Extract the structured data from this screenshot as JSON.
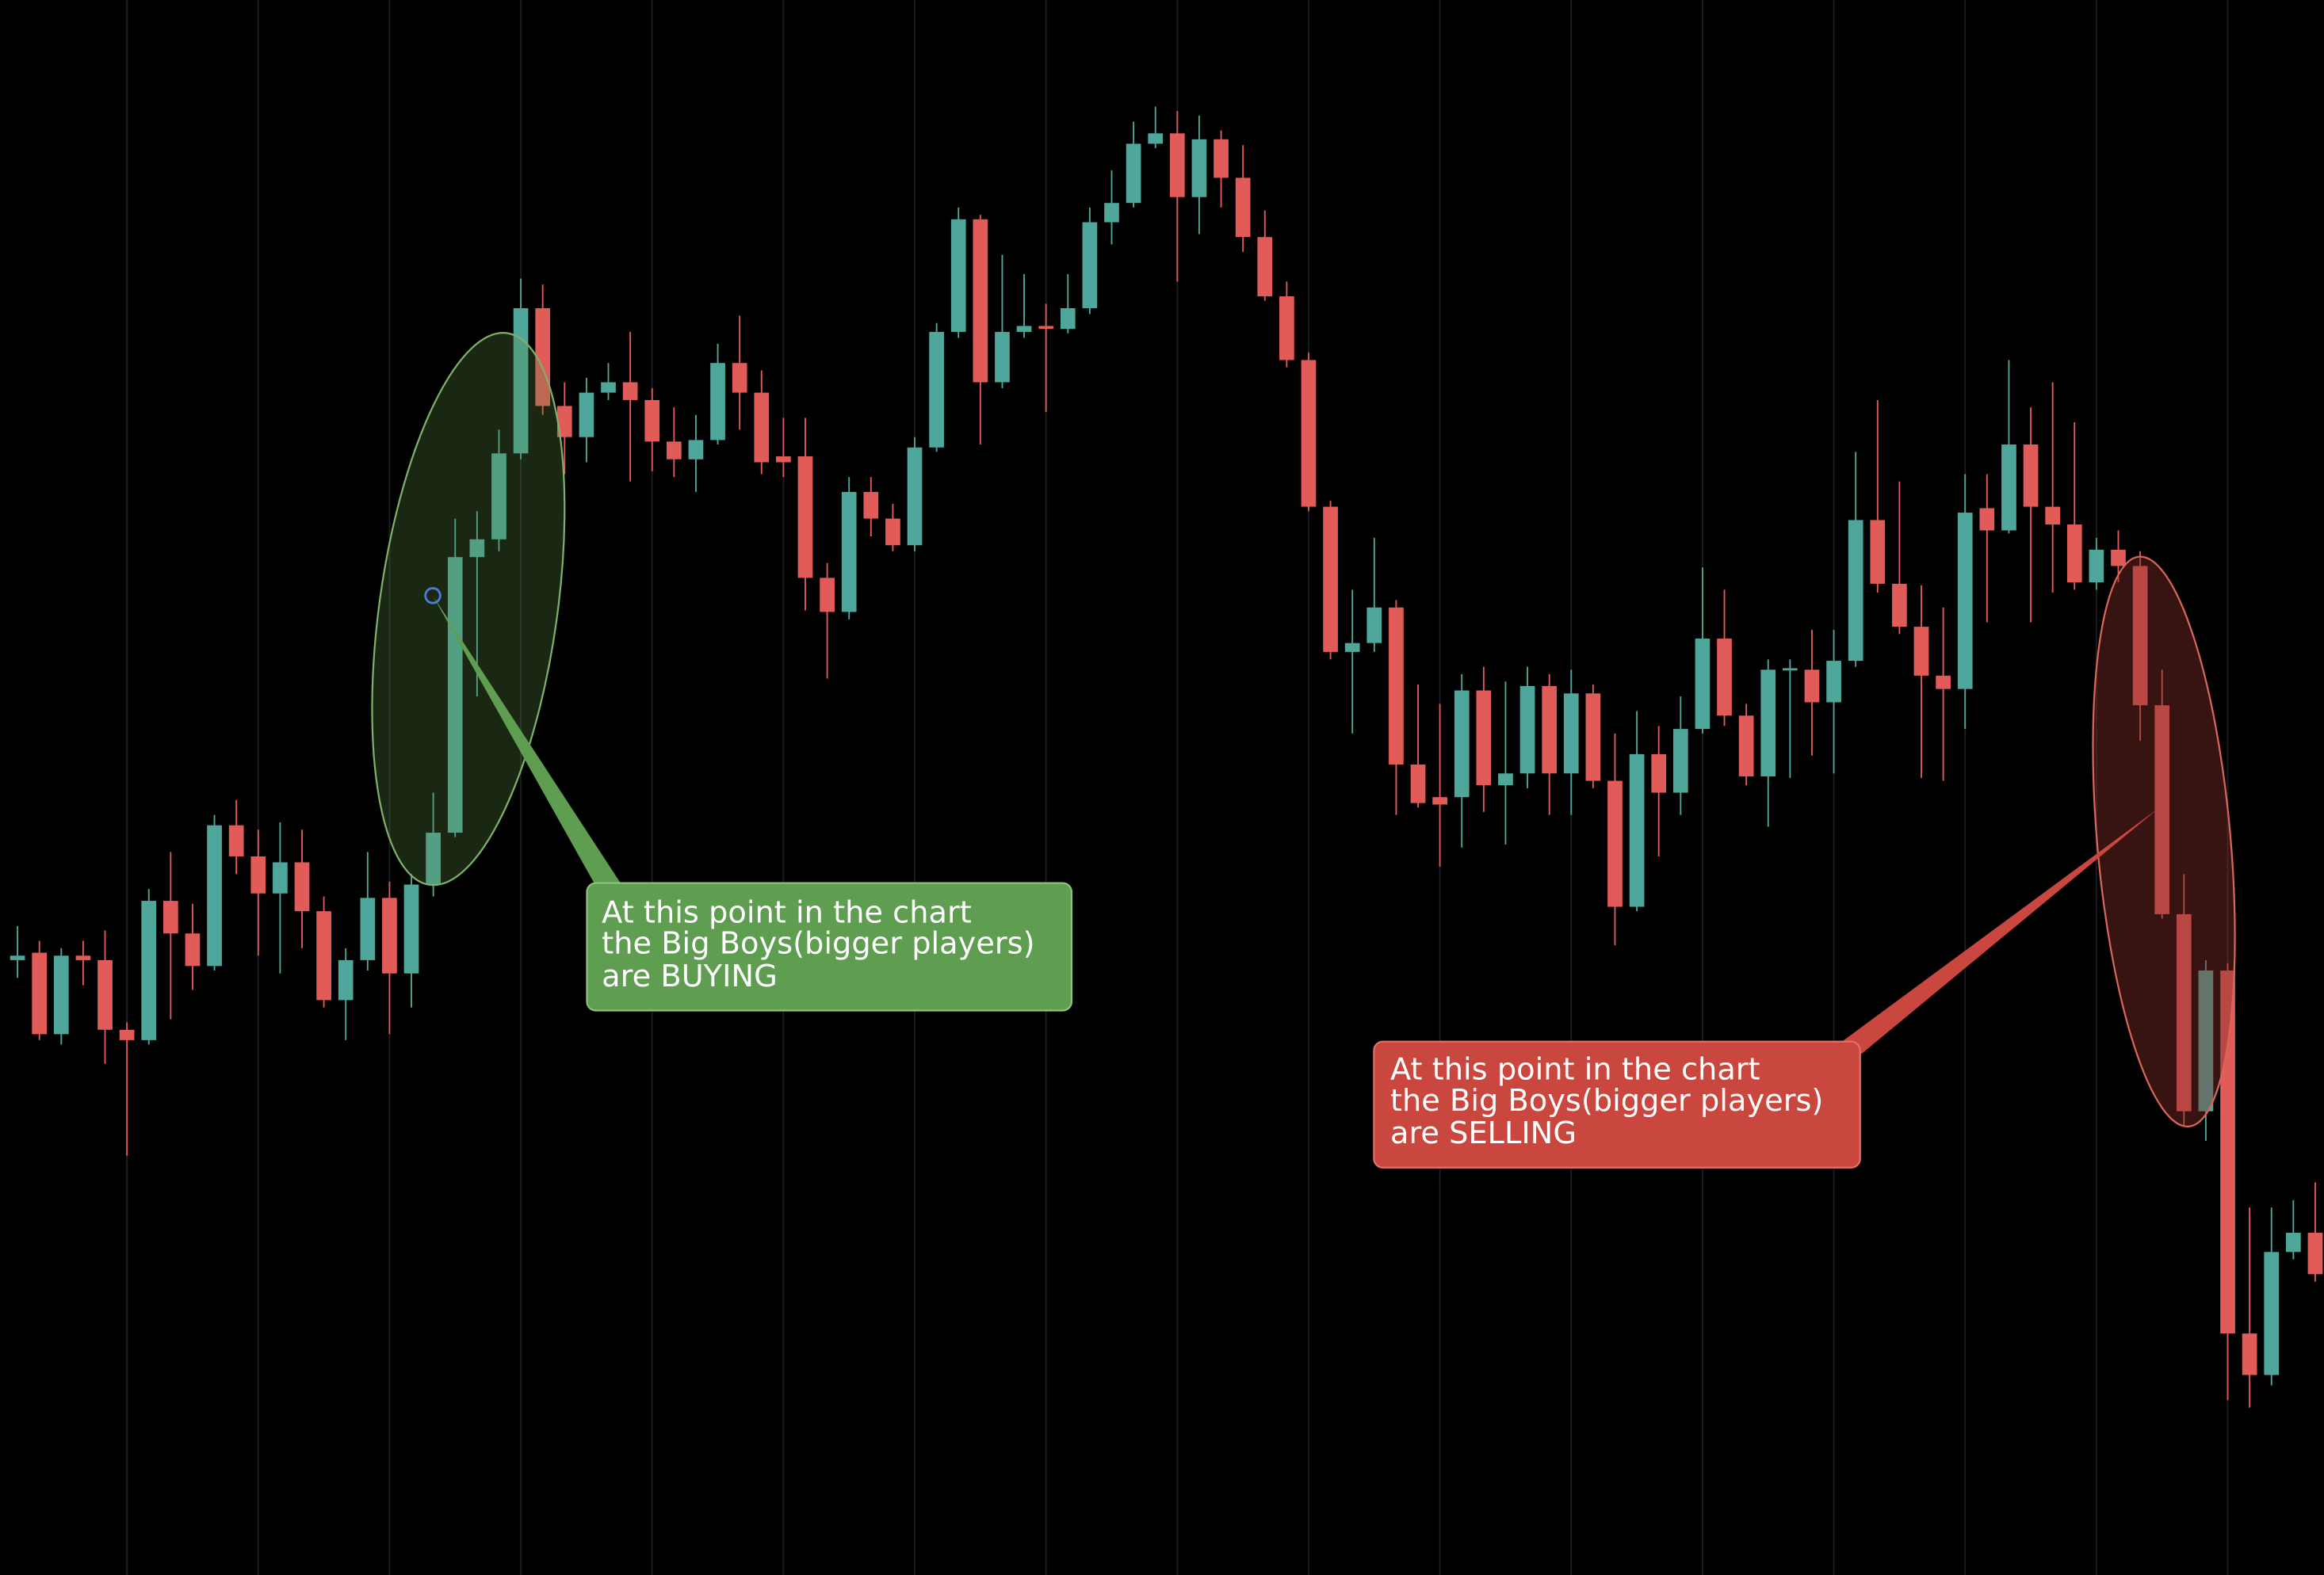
{
  "chart_data": {
    "type": "candlestick",
    "up_color": "#4fa79b",
    "down_color": "#e15b58",
    "grid": true,
    "ylim": [
      0,
      1063
    ],
    "xlim": [
      -0.8,
      105.4
    ],
    "xticks": [
      5,
      11,
      17,
      23,
      29,
      35,
      41,
      47,
      53,
      59,
      65,
      71,
      77,
      83,
      89,
      95,
      101
    ],
    "x": [
      0,
      1,
      2,
      3,
      4,
      5,
      6,
      7,
      8,
      9,
      10,
      11,
      12,
      13,
      14,
      15,
      16,
      17,
      18,
      19,
      20,
      21,
      22,
      23,
      24,
      25,
      26,
      27,
      28,
      29,
      30,
      31,
      32,
      33,
      34,
      35,
      36,
      37,
      38,
      39,
      40,
      41,
      42,
      43,
      44,
      45,
      46,
      47,
      48,
      49,
      50,
      51,
      52,
      53,
      54,
      55,
      56,
      57,
      58,
      59,
      60,
      61,
      62,
      63,
      64,
      65,
      66,
      67,
      68,
      69,
      70,
      71,
      72,
      73,
      74,
      75,
      76,
      77,
      78,
      79,
      80,
      81,
      82,
      83,
      84,
      85,
      86,
      87,
      88,
      89,
      90,
      91,
      92,
      93,
      94,
      95,
      96,
      97,
      98,
      99,
      100,
      101,
      102,
      103,
      104,
      105
    ],
    "open": [
      415,
      420,
      365,
      418,
      415,
      368,
      361,
      455,
      433,
      411,
      506,
      485,
      460,
      481,
      448,
      388,
      415,
      457,
      406,
      466,
      501,
      687,
      699,
      757,
      855,
      789,
      768,
      798,
      805,
      793,
      765,
      753,
      766,
      818,
      798,
      755,
      755,
      673,
      650,
      731,
      713,
      695,
      761,
      839,
      915,
      805,
      839,
      843,
      841,
      855,
      913,
      926,
      966,
      973,
      930,
      969,
      943,
      903,
      863,
      820,
      721,
      623,
      629,
      653,
      547,
      525,
      525,
      597,
      533,
      541,
      600,
      541,
      595,
      536,
      451,
      554,
      528,
      571,
      632,
      580,
      539,
      611,
      611,
      589,
      617,
      712,
      669,
      640,
      607,
      598,
      720,
      705,
      763,
      721,
      709,
      670,
      692,
      681,
      587,
      446,
      313,
      408,
      163,
      135,
      218,
      231
    ],
    "high": [
      438,
      428,
      423,
      428,
      435,
      373,
      463,
      488,
      453,
      513,
      523,
      503,
      508,
      503,
      458,
      423,
      488,
      468,
      473,
      528,
      713,
      718,
      773,
      875,
      871,
      805,
      808,
      818,
      839,
      801,
      788,
      783,
      831,
      850,
      813,
      781,
      781,
      683,
      741,
      741,
      723,
      768,
      845,
      923,
      918,
      891,
      878,
      858,
      878,
      923,
      948,
      981,
      991,
      988,
      985,
      975,
      965,
      921,
      873,
      825,
      725,
      665,
      700,
      658,
      601,
      588,
      608,
      613,
      603,
      613,
      608,
      611,
      601,
      568,
      583,
      573,
      593,
      680,
      665,
      588,
      618,
      618,
      638,
      638,
      758,
      793,
      738,
      668,
      653,
      743,
      743,
      820,
      788,
      805,
      778,
      700,
      705,
      691,
      611,
      473,
      415,
      413,
      248,
      248,
      253,
      265
    ],
    "low": [
      403,
      361,
      358,
      398,
      345,
      283,
      358,
      375,
      395,
      408,
      473,
      418,
      406,
      423,
      383,
      361,
      408,
      365,
      383,
      458,
      498,
      593,
      691,
      753,
      783,
      743,
      751,
      793,
      738,
      745,
      741,
      731,
      763,
      773,
      743,
      741,
      651,
      605,
      645,
      701,
      691,
      691,
      758,
      835,
      763,
      801,
      835,
      785,
      838,
      851,
      898,
      923,
      963,
      873,
      905,
      923,
      893,
      860,
      815,
      718,
      618,
      568,
      623,
      513,
      518,
      478,
      491,
      515,
      493,
      531,
      513,
      513,
      531,
      425,
      448,
      485,
      513,
      568,
      573,
      533,
      505,
      538,
      553,
      541,
      613,
      663,
      635,
      538,
      536,
      571,
      643,
      703,
      643,
      663,
      665,
      665,
      670,
      563,
      443,
      303,
      293,
      118,
      113,
      128,
      213,
      198
    ],
    "close": [
      418,
      365,
      418,
      415,
      368,
      361,
      455,
      433,
      411,
      506,
      485,
      460,
      481,
      448,
      388,
      415,
      457,
      406,
      466,
      501,
      687,
      699,
      757,
      855,
      789,
      768,
      798,
      805,
      793,
      765,
      753,
      766,
      818,
      798,
      751,
      751,
      673,
      650,
      731,
      713,
      695,
      761,
      839,
      915,
      805,
      839,
      843,
      841,
      855,
      913,
      926,
      966,
      973,
      930,
      969,
      943,
      903,
      863,
      820,
      721,
      623,
      629,
      653,
      547,
      521,
      520,
      597,
      533,
      541,
      600,
      541,
      595,
      536,
      451,
      554,
      528,
      571,
      632,
      580,
      539,
      611,
      612,
      589,
      617,
      712,
      669,
      640,
      607,
      598,
      717,
      705,
      763,
      721,
      709,
      670,
      692,
      681,
      587,
      446,
      313,
      408,
      163,
      135,
      218,
      231,
      203
    ],
    "annotations": [
      {
        "lines": [
          "At this point in the chart",
          "the Big Boys(bigger players)",
          "are BUYING"
        ]
      },
      {
        "lines": [
          "At this point in the chart",
          "the Big Boys(bigger players)",
          "are SELLING"
        ]
      }
    ]
  }
}
